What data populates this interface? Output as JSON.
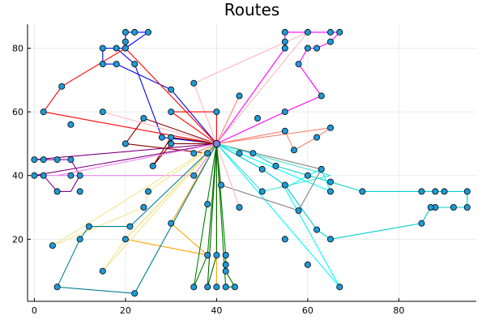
{
  "chart_data": {
    "type": "scatter",
    "title": "Routes",
    "xlabel": "",
    "ylabel": "",
    "xlim": [
      -1.5,
      97
    ],
    "ylim": [
      0.5,
      87.5
    ],
    "xticks": [
      0,
      20,
      40,
      60,
      80
    ],
    "yticks": [
      20,
      40,
      60,
      80
    ],
    "grid": true,
    "legend": "none",
    "depot": [
      40,
      50
    ],
    "colors": {
      "point_fill": "#1f9ad6",
      "point_stroke": "#000000",
      "depot_fill": "#7b7fd6",
      "grid": "#e6e6e6",
      "axis": "#000000"
    },
    "routes": [
      {
        "color": "#0000ff",
        "points": [
          [
            40,
            50
          ],
          [
            30,
            67
          ],
          [
            18,
            75
          ],
          [
            15,
            75
          ],
          [
            15,
            80
          ],
          [
            20,
            80
          ],
          [
            20,
            82
          ],
          [
            20,
            85
          ],
          [
            22,
            85
          ],
          [
            25,
            85
          ],
          [
            20,
            80
          ],
          [
            18,
            80
          ],
          [
            22,
            75
          ],
          [
            28,
            52
          ],
          [
            40,
            50
          ]
        ]
      },
      {
        "color": "#ff0000",
        "points": [
          [
            40,
            50
          ],
          [
            20,
            80
          ],
          [
            6,
            68
          ],
          [
            2,
            60
          ],
          [
            40,
            50
          ]
        ]
      },
      {
        "color": "#ff00ff",
        "points": [
          [
            40,
            50
          ],
          [
            55,
            80
          ],
          [
            55,
            85
          ],
          [
            60,
            85
          ],
          [
            65,
            85
          ],
          [
            67,
            85
          ],
          [
            65,
            82
          ],
          [
            62,
            80
          ],
          [
            60,
            80
          ],
          [
            58,
            75
          ],
          [
            63,
            65
          ],
          [
            55,
            60
          ],
          [
            40,
            50
          ]
        ]
      },
      {
        "color": "#ffb6c1",
        "points": [
          [
            40,
            50
          ],
          [
            35,
            69
          ],
          [
            60,
            85
          ],
          [
            40,
            50
          ]
        ]
      },
      {
        "color": "#fa8072",
        "points": [
          [
            40,
            50
          ],
          [
            45,
            65
          ],
          [
            40,
            50
          ]
        ]
      },
      {
        "color": "#fa8072",
        "points": [
          [
            40,
            50
          ],
          [
            65,
            55
          ],
          [
            62,
            52
          ],
          [
            57,
            48
          ],
          [
            55,
            54
          ],
          [
            40,
            50
          ]
        ]
      },
      {
        "color": "#ff0000",
        "points": [
          [
            40,
            50
          ],
          [
            40,
            60
          ],
          [
            30,
            60
          ],
          [
            40,
            50
          ]
        ]
      },
      {
        "color": "#8b0000",
        "points": [
          [
            40,
            50
          ],
          [
            24,
            58
          ],
          [
            20,
            50
          ],
          [
            38,
            47
          ],
          [
            40,
            50
          ]
        ]
      },
      {
        "color": "#800080",
        "points": [
          [
            40,
            50
          ],
          [
            0,
            45
          ],
          [
            2,
            45
          ],
          [
            5,
            45
          ],
          [
            8,
            45
          ],
          [
            10,
            40
          ],
          [
            8,
            35
          ],
          [
            5,
            35
          ],
          [
            2,
            40
          ],
          [
            0,
            40
          ],
          [
            40,
            50
          ]
        ]
      },
      {
        "color": "#800000",
        "points": [
          [
            40,
            50
          ],
          [
            30,
            52
          ],
          [
            26,
            43
          ],
          [
            30,
            50
          ],
          [
            40,
            50
          ]
        ]
      },
      {
        "color": "#ee82ee",
        "points": [
          [
            40,
            50
          ],
          [
            5,
            40
          ],
          [
            2,
            40
          ],
          [
            35,
            40
          ],
          [
            40,
            50
          ]
        ]
      },
      {
        "color": "#ffb6c1",
        "points": [
          [
            40,
            50
          ],
          [
            15,
            60
          ],
          [
            40,
            50
          ]
        ]
      },
      {
        "color": "#f08080",
        "points": [
          [
            40,
            50
          ],
          [
            35,
            47
          ],
          [
            40,
            50
          ]
        ]
      },
      {
        "color": "#00ced1",
        "points": [
          [
            40,
            50
          ],
          [
            48,
            47
          ],
          [
            53,
            43
          ],
          [
            65,
            38
          ],
          [
            72,
            35
          ],
          [
            85,
            35
          ],
          [
            88,
            35
          ],
          [
            90,
            35
          ],
          [
            95,
            35
          ],
          [
            95,
            30
          ],
          [
            92,
            30
          ],
          [
            88,
            30
          ],
          [
            87,
            30
          ],
          [
            85,
            25
          ],
          [
            65,
            20
          ],
          [
            62,
            23
          ],
          [
            55,
            37
          ],
          [
            50,
            42
          ],
          [
            40,
            50
          ]
        ]
      },
      {
        "color": "#00ffff",
        "points": [
          [
            40,
            50
          ],
          [
            65,
            35
          ],
          [
            63,
            42
          ],
          [
            60,
            40
          ],
          [
            55,
            36
          ],
          [
            67,
            5
          ],
          [
            40,
            50
          ]
        ]
      },
      {
        "color": "#808080",
        "points": [
          [
            40,
            50
          ],
          [
            41,
            37
          ],
          [
            58,
            29
          ],
          [
            63,
            42
          ],
          [
            40,
            50
          ]
        ]
      },
      {
        "color": "#40e0d0",
        "points": [
          [
            40,
            50
          ],
          [
            50,
            35
          ],
          [
            65,
            40
          ],
          [
            40,
            50
          ]
        ]
      },
      {
        "color": "#ffb6c1",
        "points": [
          [
            40,
            50
          ],
          [
            45,
            30
          ],
          [
            40,
            50
          ]
        ]
      },
      {
        "color": "#ffa500",
        "points": [
          [
            40,
            50
          ],
          [
            40,
            5
          ],
          [
            40,
            50
          ]
        ]
      },
      {
        "color": "#ffa500",
        "points": [
          [
            40,
            50
          ],
          [
            30,
            25
          ],
          [
            38,
            15
          ],
          [
            20,
            20
          ],
          [
            40,
            50
          ]
        ]
      },
      {
        "color": "#f0e68c",
        "points": [
          [
            40,
            50
          ],
          [
            25,
            35
          ],
          [
            24,
            30
          ],
          [
            4,
            18
          ],
          [
            40,
            50
          ]
        ]
      },
      {
        "color": "#f0e68c",
        "points": [
          [
            40,
            50
          ],
          [
            15,
            10
          ],
          [
            20,
            20
          ],
          [
            40,
            50
          ]
        ]
      },
      {
        "color": "#008000",
        "points": [
          [
            40,
            50
          ],
          [
            42,
            15
          ],
          [
            42,
            12
          ],
          [
            42,
            10
          ],
          [
            44,
            5
          ],
          [
            42,
            5
          ],
          [
            40,
            50
          ]
        ]
      },
      {
        "color": "#008000",
        "points": [
          [
            40,
            50
          ],
          [
            38,
            15
          ],
          [
            35,
            5
          ],
          [
            40,
            50
          ]
        ]
      },
      {
        "color": "#006400",
        "points": [
          [
            40,
            50
          ],
          [
            40,
            15
          ],
          [
            38,
            5
          ],
          [
            40,
            50
          ]
        ]
      },
      {
        "color": "#00808f",
        "points": [
          [
            40,
            50
          ],
          [
            22,
            3
          ],
          [
            5,
            5
          ],
          [
            10,
            20
          ],
          [
            12,
            24
          ],
          [
            21,
            24
          ],
          [
            40,
            50
          ]
        ]
      }
    ],
    "points": [
      [
        15,
        80
      ],
      [
        18,
        80
      ],
      [
        20,
        80
      ],
      [
        20,
        82
      ],
      [
        20,
        85
      ],
      [
        22,
        85
      ],
      [
        25,
        85
      ],
      [
        15,
        75
      ],
      [
        18,
        75
      ],
      [
        22,
        75
      ],
      [
        30,
        67
      ],
      [
        35,
        69
      ],
      [
        6,
        68
      ],
      [
        2,
        60
      ],
      [
        55,
        80
      ],
      [
        55,
        82
      ],
      [
        55,
        85
      ],
      [
        60,
        85
      ],
      [
        65,
        85
      ],
      [
        67,
        85
      ],
      [
        65,
        82
      ],
      [
        60,
        80
      ],
      [
        62,
        80
      ],
      [
        58,
        75
      ],
      [
        63,
        65
      ],
      [
        45,
        65
      ],
      [
        55,
        60
      ],
      [
        65,
        55
      ],
      [
        62,
        52
      ],
      [
        57,
        48
      ],
      [
        55,
        54
      ],
      [
        49,
        58
      ],
      [
        45,
        47
      ],
      [
        40,
        60
      ],
      [
        30,
        60
      ],
      [
        24,
        58
      ],
      [
        15,
        60
      ],
      [
        8,
        56
      ],
      [
        20,
        50
      ],
      [
        28,
        52
      ],
      [
        30,
        52
      ],
      [
        35,
        47
      ],
      [
        38,
        47
      ],
      [
        26,
        43
      ],
      [
        30,
        50
      ],
      [
        0,
        45
      ],
      [
        2,
        45
      ],
      [
        5,
        45
      ],
      [
        8,
        45
      ],
      [
        0,
        40
      ],
      [
        2,
        40
      ],
      [
        8,
        40
      ],
      [
        10,
        40
      ],
      [
        5,
        35
      ],
      [
        10,
        35
      ],
      [
        25,
        35
      ],
      [
        35,
        40
      ],
      [
        48,
        47
      ],
      [
        50,
        42
      ],
      [
        53,
        43
      ],
      [
        63,
        42
      ],
      [
        65,
        38
      ],
      [
        72,
        35
      ],
      [
        85,
        35
      ],
      [
        88,
        35
      ],
      [
        90,
        35
      ],
      [
        95,
        35
      ],
      [
        88,
        30
      ],
      [
        87,
        30
      ],
      [
        92,
        30
      ],
      [
        95,
        30
      ],
      [
        85,
        25
      ],
      [
        65,
        35
      ],
      [
        60,
        40
      ],
      [
        55,
        37
      ],
      [
        50,
        35
      ],
      [
        41,
        37
      ],
      [
        38,
        31
      ],
      [
        45,
        30
      ],
      [
        58,
        29
      ],
      [
        62,
        23
      ],
      [
        65,
        20
      ],
      [
        55,
        20
      ],
      [
        60,
        12
      ],
      [
        67,
        5
      ],
      [
        24,
        30
      ],
      [
        30,
        25
      ],
      [
        20,
        20
      ],
      [
        10,
        20
      ],
      [
        12,
        24
      ],
      [
        21,
        24
      ],
      [
        4,
        18
      ],
      [
        15,
        10
      ],
      [
        38,
        15
      ],
      [
        40,
        15
      ],
      [
        42,
        15
      ],
      [
        42,
        12
      ],
      [
        42,
        10
      ],
      [
        35,
        5
      ],
      [
        38,
        5
      ],
      [
        40,
        5
      ],
      [
        42,
        5
      ],
      [
        44,
        5
      ],
      [
        22,
        3
      ],
      [
        5,
        5
      ]
    ]
  }
}
